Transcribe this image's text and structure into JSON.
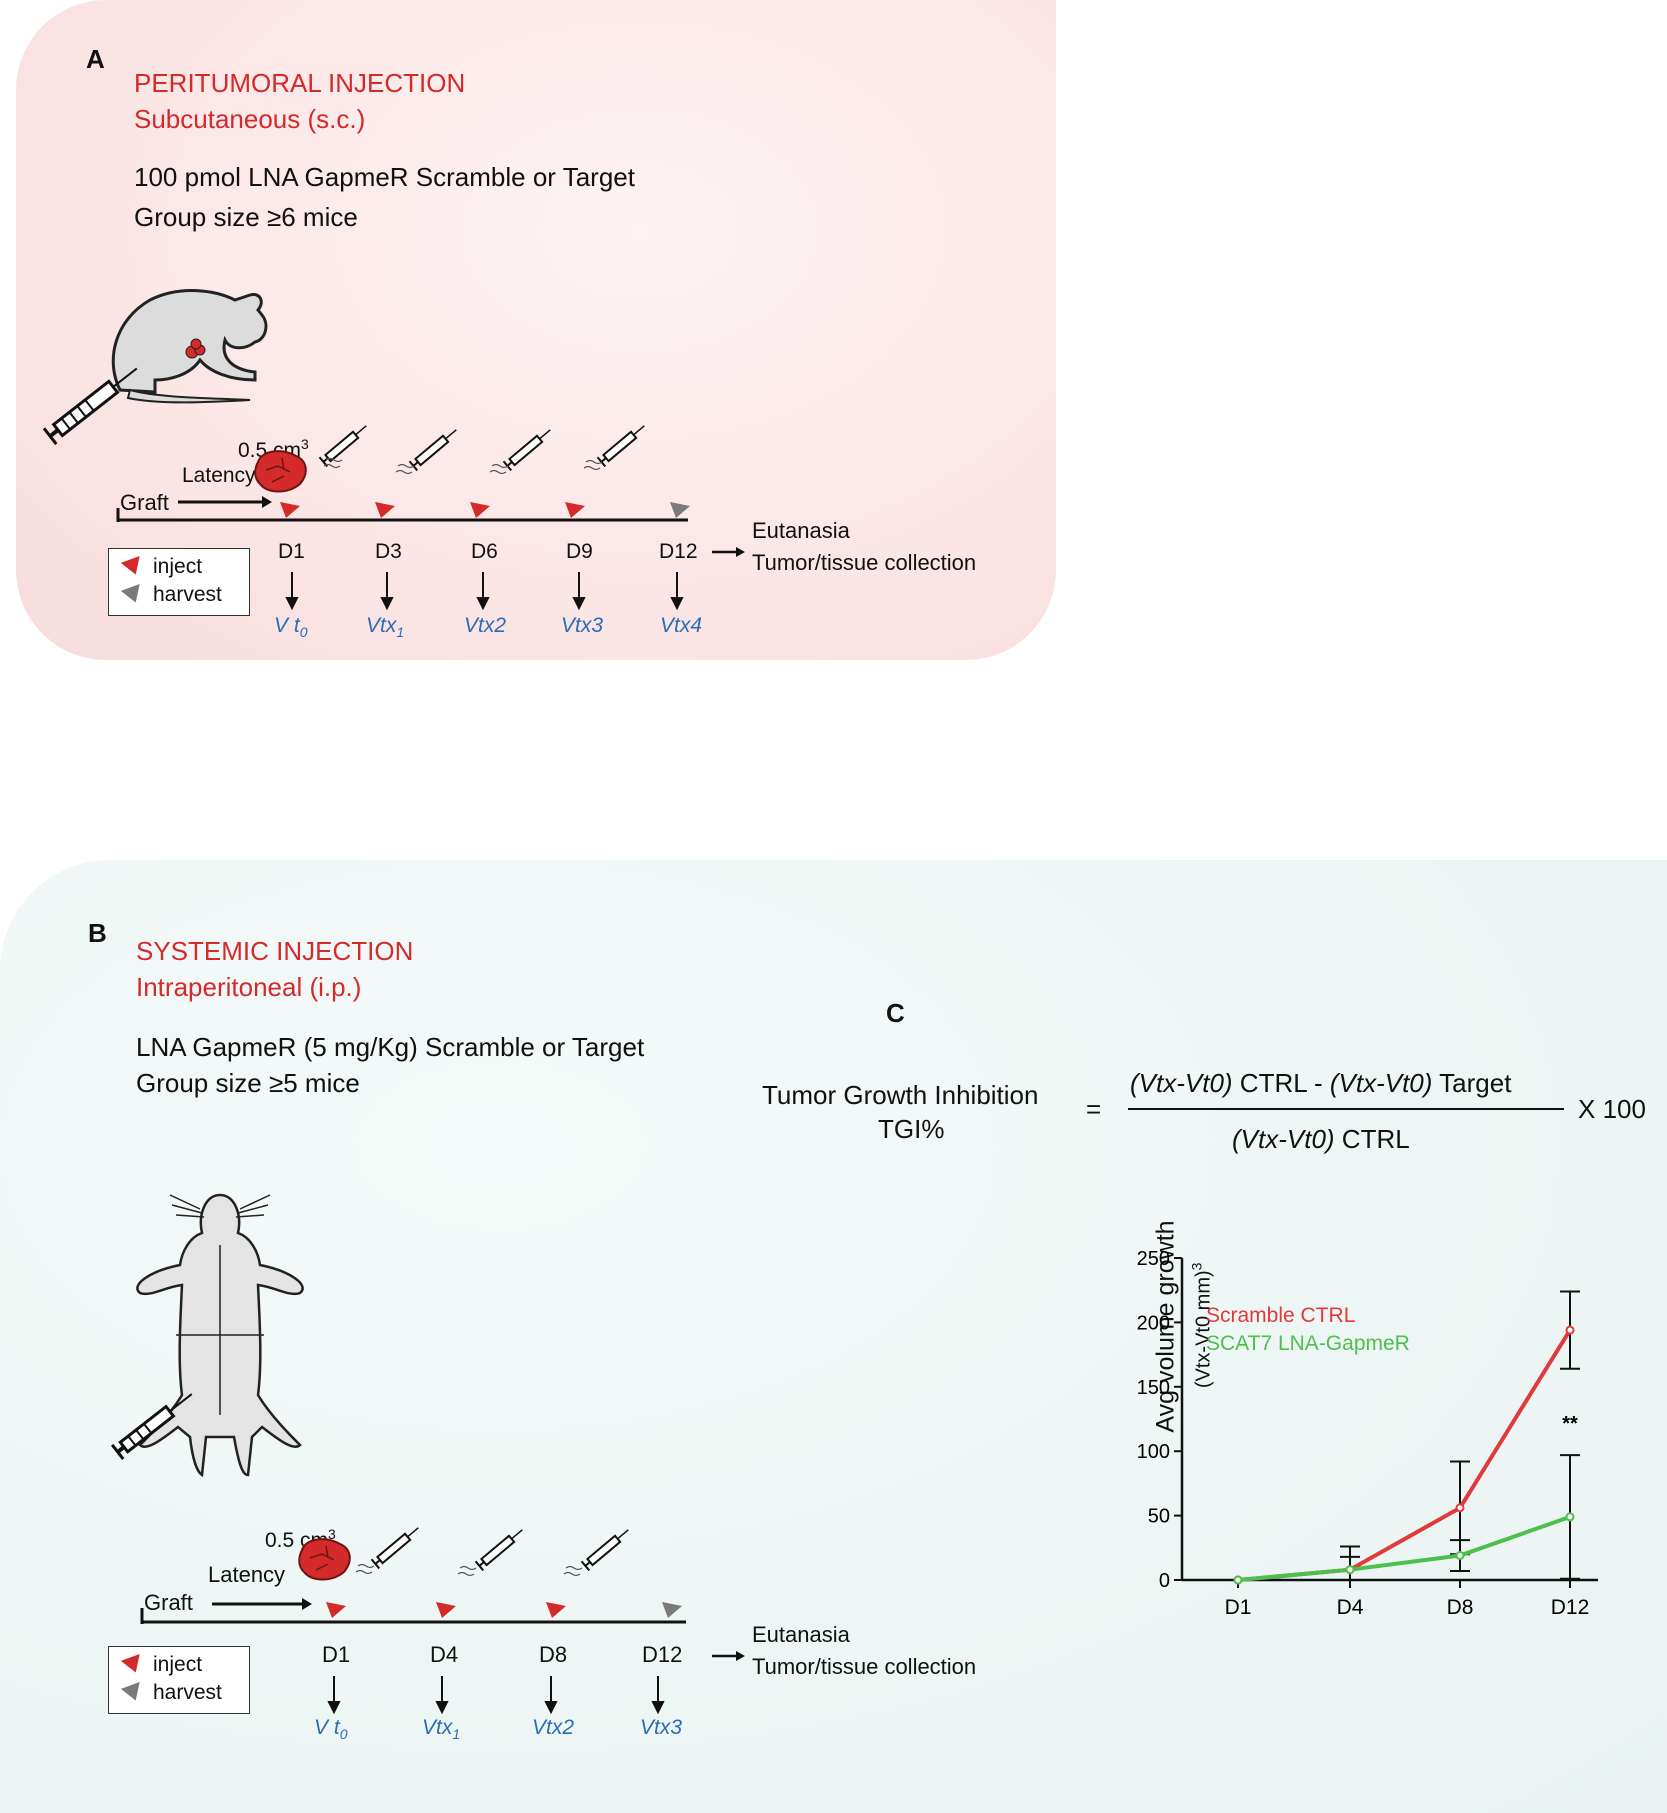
{
  "panel_a": {
    "letter": "A",
    "title": "PERITUMORAL INJECTION",
    "subtitle": "Subcutaneous (s.c.)",
    "line1": "100 pmol LNA GapmeR Scramble or Target",
    "line2_prefix": "Group size",
    "line2_symbol": "≥",
    "line2_suffix": "6 mice",
    "tumor_volume": "0.5 cm",
    "tumor_volume_exp": "3",
    "latency": "Latency",
    "graft": "Graft",
    "days": [
      "D1",
      "D3",
      "D6",
      "D9",
      "D12"
    ],
    "volumes": [
      {
        "main": "V t",
        "sub": "0"
      },
      {
        "main": "Vtx",
        "sub": "1"
      },
      {
        "main": "Vtx2",
        "sub": ""
      },
      {
        "main": "Vtx3",
        "sub": ""
      },
      {
        "main": "Vtx4",
        "sub": ""
      }
    ],
    "endpoint1": "Eutanasia",
    "endpoint2": "Tumor/tissue collection",
    "legend_inject": "inject",
    "legend_harvest": "harvest"
  },
  "panel_b": {
    "letter": "B",
    "title": "SYSTEMIC INJECTION",
    "subtitle": "Intraperitoneal (i.p.)",
    "line1": "LNA GapmeR (5 mg/Kg) Scramble or Target",
    "line2_prefix": "Group size",
    "line2_symbol": "≥",
    "line2_suffix": "5 mice",
    "tumor_volume": "0.5 cm",
    "tumor_volume_exp": "3",
    "latency": "Latency",
    "graft": "Graft",
    "days": [
      "D1",
      "D4",
      "D8",
      "D12"
    ],
    "volumes": [
      {
        "main": "V t",
        "sub": "0"
      },
      {
        "main": "Vtx",
        "sub": "1"
      },
      {
        "main": "Vtx2",
        "sub": ""
      },
      {
        "main": "Vtx3",
        "sub": ""
      }
    ],
    "endpoint1": "Eutanasia",
    "endpoint2": "Tumor/tissue collection",
    "legend_inject": "inject",
    "legend_harvest": "harvest"
  },
  "panel_c": {
    "letter": "C",
    "lhs1": "Tumor Growth Inhibition",
    "lhs2": "TGI%",
    "equals": "=",
    "num_a_it": "(Vtx-Vt0)",
    "num_a_tx": " CTRL - ",
    "num_b_it": "(Vtx-Vt0)",
    "num_b_tx": " Target",
    "den_it": "(Vtx-Vt0)",
    "den_tx": " CTRL",
    "times": "X 100"
  },
  "chart_data": {
    "type": "line",
    "categories": [
      "D1",
      "D4",
      "D8",
      "D12"
    ],
    "series": [
      {
        "name": "Scramble CTRL",
        "color": "#e03a3a",
        "values": [
          0,
          8,
          56,
          194
        ],
        "errors": [
          0,
          18,
          36,
          30
        ]
      },
      {
        "name": "SCAT7 LNA-GapmeR",
        "color": "#4cbf4c",
        "values": [
          0,
          8,
          19,
          49
        ],
        "errors": [
          0,
          10,
          12,
          48
        ]
      }
    ],
    "ylabel_line1": "Avg volume growth",
    "ylabel_line2": "(Vtx-Vt0 mm)",
    "ylabel_exp": "3",
    "yticks": [
      0,
      50,
      100,
      150,
      200,
      250
    ],
    "ylim": [
      0,
      250
    ],
    "annotation": "**",
    "annotation_category": "D12",
    "legend_position": "top-left"
  }
}
